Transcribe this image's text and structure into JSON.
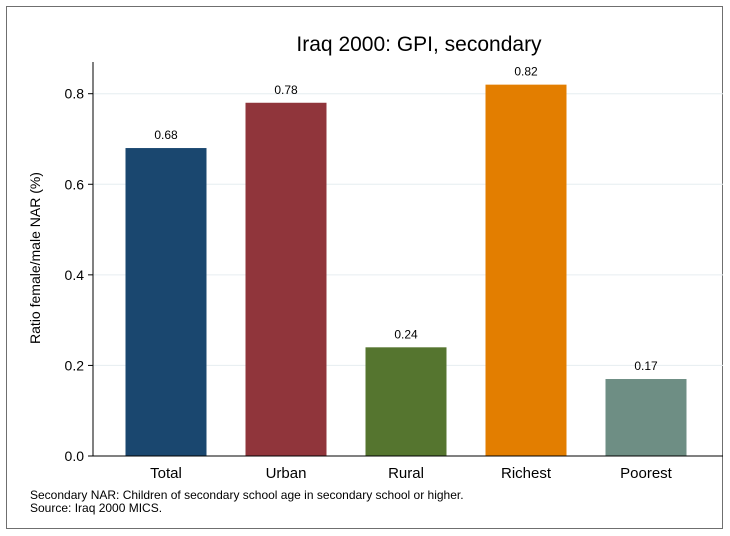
{
  "chart_data": {
    "type": "bar",
    "title": "Iraq 2000: GPI, secondary",
    "ylabel": "Ratio female/male NAR (%)",
    "xlabel": "",
    "categories": [
      "Total",
      "Urban",
      "Rural",
      "Richest",
      "Poorest"
    ],
    "values": [
      0.68,
      0.78,
      0.24,
      0.82,
      0.17
    ],
    "value_labels": [
      "0.68",
      "0.78",
      "0.24",
      "0.82",
      "0.17"
    ],
    "colors": [
      "#1a476f",
      "#90353b",
      "#55752f",
      "#e37e00",
      "#6e8e84"
    ],
    "ylim": [
      0,
      0.87
    ],
    "yticks": [
      0,
      0.2,
      0.4,
      0.6,
      0.8
    ],
    "ytick_labels": [
      "0.0",
      "0.2",
      "0.4",
      "0.6",
      "0.8"
    ],
    "grid": true,
    "legend": "none"
  },
  "notes": {
    "line1": "Secondary NAR: Children of secondary school age in secondary school or higher.",
    "line2": "Source: Iraq 2000 MICS."
  }
}
